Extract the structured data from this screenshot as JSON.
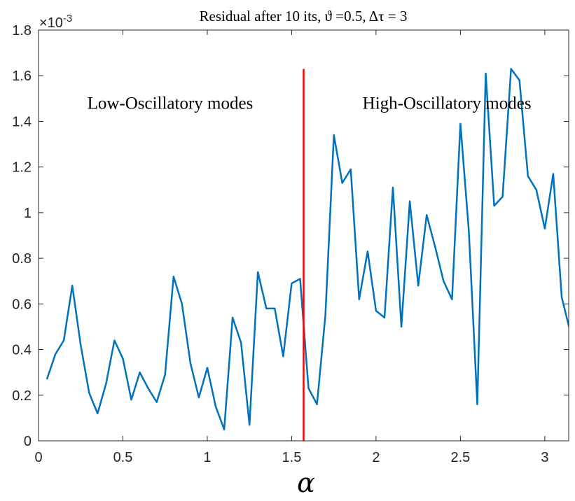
{
  "chart_data": {
    "type": "line",
    "title": "Residual after 10 its, ϑ =0.5, Δτ = 3",
    "xlabel": "α",
    "ylabel": "",
    "xlim": [
      0,
      3.1416
    ],
    "ylim": [
      0,
      1.8
    ],
    "y_exponent_label": "×10",
    "y_exponent_power": "-3",
    "xticks": [
      0,
      0.5,
      1,
      1.5,
      2,
      2.5,
      3
    ],
    "xtick_labels": [
      "0",
      "0.5",
      "1",
      "1.5",
      "2",
      "2.5",
      "3"
    ],
    "yticks": [
      0,
      0.2,
      0.4,
      0.6,
      0.8,
      1.0,
      1.2,
      1.4,
      1.6,
      1.8
    ],
    "ytick_labels": [
      "0",
      "0.2",
      "0.4",
      "0.6",
      "0.8",
      "1",
      "1.2",
      "1.4",
      "1.6",
      "1.8"
    ],
    "series": [
      {
        "name": "residual",
        "color": "#0072BD",
        "x": [
          0.05,
          0.1,
          0.15,
          0.2,
          0.25,
          0.3,
          0.35,
          0.4,
          0.45,
          0.5,
          0.55,
          0.6,
          0.65,
          0.7,
          0.75,
          0.8,
          0.85,
          0.9,
          0.95,
          1.0,
          1.05,
          1.1,
          1.15,
          1.2,
          1.25,
          1.3,
          1.35,
          1.4,
          1.45,
          1.5,
          1.55,
          1.6,
          1.65,
          1.7,
          1.75,
          1.8,
          1.85,
          1.9,
          1.95,
          2.0,
          2.05,
          2.1,
          2.15,
          2.2,
          2.25,
          2.3,
          2.35,
          2.4,
          2.45,
          2.5,
          2.55,
          2.6,
          2.65,
          2.7,
          2.75,
          2.8,
          2.85,
          2.9,
          2.95,
          3.0,
          3.05,
          3.1,
          3.15
        ],
        "values": [
          0.27,
          0.38,
          0.44,
          0.68,
          0.42,
          0.21,
          0.12,
          0.25,
          0.44,
          0.36,
          0.18,
          0.3,
          0.23,
          0.17,
          0.29,
          0.72,
          0.6,
          0.34,
          0.19,
          0.32,
          0.15,
          0.05,
          0.54,
          0.43,
          0.07,
          0.74,
          0.58,
          0.58,
          0.37,
          0.69,
          0.71,
          0.23,
          0.16,
          0.55,
          1.34,
          1.13,
          1.19,
          0.62,
          0.83,
          0.57,
          0.54,
          1.11,
          0.5,
          1.05,
          0.68,
          0.99,
          0.85,
          0.7,
          0.62,
          1.39,
          0.92,
          0.16,
          1.61,
          1.03,
          1.07,
          1.63,
          1.58,
          1.16,
          1.1,
          0.93,
          1.17,
          0.63,
          0.48
        ]
      }
    ],
    "vline": {
      "x": 1.5708,
      "y_top": 1.63,
      "color": "#FF0000"
    },
    "annotations": [
      {
        "text": "Low-Oscillatory modes",
        "x": 0.78,
        "y": 1.48
      },
      {
        "text": "High-Oscillatory modes",
        "x": 2.42,
        "y": 1.48
      }
    ]
  }
}
